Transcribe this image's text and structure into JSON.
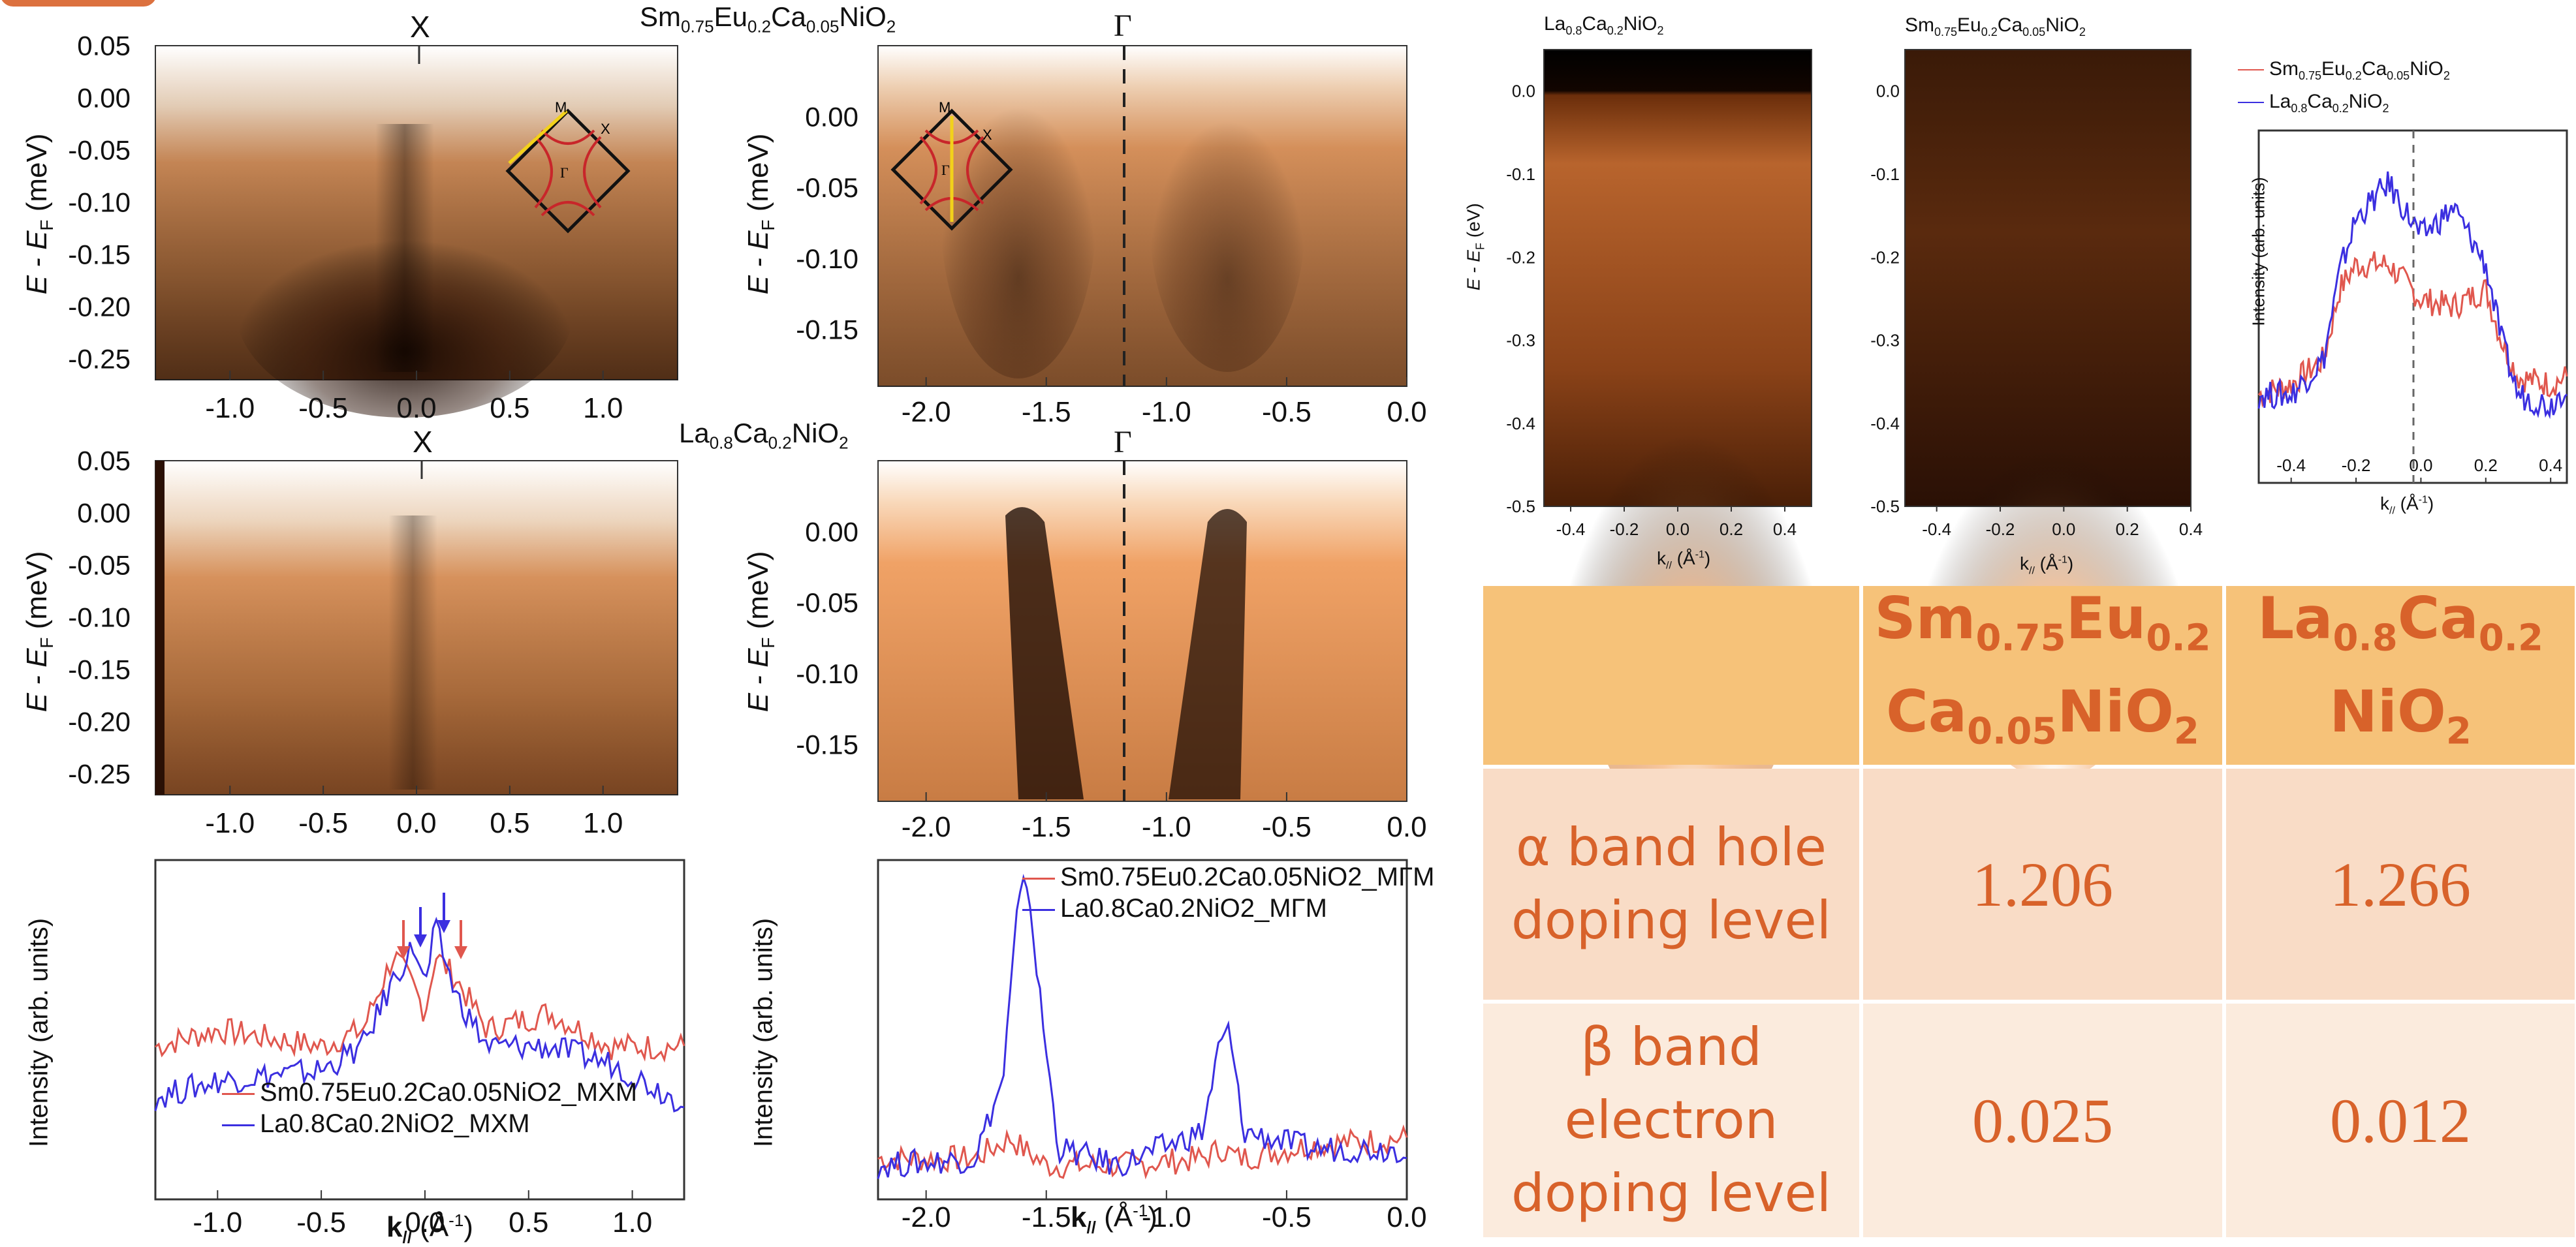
{
  "colors": {
    "orange_text": "#D8622A",
    "table_header": "#F6C279",
    "row_alpha": "#F9DCC6",
    "row_beta": "#FBEBDD",
    "red_curve": "#E0574E",
    "blue_curve": "#3B2FE0"
  },
  "left_panels": {
    "title_sm": {
      "base": "Sm",
      "s1": "0.75",
      "b2": "Eu",
      "s2": "0.2",
      "b3": "Ca",
      "s3": "0.05",
      "b4": "NiO",
      "s4": "2"
    },
    "title_la": {
      "base": "La",
      "s1": "0.8",
      "b2": "Ca",
      "s2": "0.2",
      "b3": "NiO",
      "s3": "2"
    },
    "label_X": "X",
    "label_Gamma": "Γ",
    "ylabel_energy": "E - E",
    "ylabel_energy_sub": "F",
    "ylabel_energy_unit": "(meV)",
    "ylabel_intensity": "Intensity (arb. units)",
    "xlabel_k": "k",
    "xlabel_k_sub": "//",
    "xlabel_k_unit": "(Å",
    "xlabel_k_unit_sup": "-1",
    "xlabel_k_close": ")",
    "bz_labels": {
      "M": "M",
      "X": "X",
      "Gamma": "Γ"
    }
  },
  "chart_data": [
    {
      "type": "heatmap",
      "title": "Sm0.75Eu0.2Ca0.05NiO2",
      "point_label": "X",
      "xlim": [
        -1.4,
        1.4
      ],
      "ylim": [
        -0.27,
        0.05
      ],
      "x_ticks": [
        "-1.0",
        "-0.5",
        "0.0",
        "0.5",
        "1.0"
      ],
      "y_ticks": [
        "0.05",
        "0.00",
        "-0.05",
        "-0.10",
        "-0.15",
        "-0.20",
        "-0.25"
      ]
    },
    {
      "type": "heatmap",
      "point_label": "Γ",
      "xlim": [
        -2.2,
        0.0
      ],
      "ylim": [
        -0.19,
        0.05
      ],
      "x_ticks": [
        "-2.0",
        "-1.5",
        "-1.0",
        "-0.5",
        "0.0"
      ],
      "y_ticks": [
        "0.00",
        "-0.05",
        "-0.10",
        "-0.15"
      ]
    },
    {
      "type": "heatmap",
      "title": "La0.8Ca0.2NiO2",
      "point_label": "X",
      "xlim": [
        -1.4,
        1.4
      ],
      "ylim": [
        -0.27,
        0.05
      ],
      "x_ticks": [
        "-1.0",
        "-0.5",
        "0.0",
        "0.5",
        "1.0"
      ],
      "y_ticks": [
        "0.05",
        "0.00",
        "-0.05",
        "-0.10",
        "-0.15",
        "-0.20",
        "-0.25"
      ]
    },
    {
      "type": "heatmap",
      "point_label": "Γ",
      "xlim": [
        -2.2,
        0.0
      ],
      "ylim": [
        -0.19,
        0.05
      ],
      "x_ticks": [
        "-2.0",
        "-1.5",
        "-1.0",
        "-0.5",
        "0.0"
      ],
      "y_ticks": [
        "0.00",
        "-0.05",
        "-0.10",
        "-0.15"
      ]
    },
    {
      "type": "line",
      "xlim": [
        -1.3,
        1.25
      ],
      "x_ticks": [
        "-1.0",
        "-0.5",
        "0.0",
        "0.5",
        "1.0"
      ],
      "ylabel": "Intensity (arb. units)",
      "series": [
        {
          "name": "Sm0.75Eu0.2Ca0.05NiO2_MXM",
          "color": "#E0574E",
          "x": [
            -1.3,
            -1.0,
            -0.5,
            -0.3,
            -0.15,
            -0.05,
            0.0,
            0.05,
            0.15,
            0.3,
            0.6,
            0.9,
            1.2
          ],
          "y": [
            0.45,
            0.5,
            0.45,
            0.5,
            0.72,
            0.62,
            0.55,
            0.72,
            0.65,
            0.5,
            0.55,
            0.45,
            0.45
          ]
        },
        {
          "name": "La0.8Ca0.2NiO2_MXM",
          "color": "#3B2FE0",
          "x": [
            -1.3,
            -1.0,
            -0.5,
            -0.3,
            -0.15,
            -0.05,
            0.0,
            0.05,
            0.15,
            0.3,
            0.6,
            0.9,
            1.2
          ],
          "y": [
            0.3,
            0.35,
            0.38,
            0.45,
            0.65,
            0.75,
            0.62,
            0.8,
            0.6,
            0.45,
            0.45,
            0.4,
            0.3
          ]
        }
      ],
      "legend": [
        "Sm0.75Eu0.2Ca0.05NiO2_MXM",
        "La0.8Ca0.2NiO2_MXM"
      ]
    },
    {
      "type": "line",
      "xlim": [
        -2.2,
        0.0
      ],
      "x_ticks": [
        "-2.0",
        "-1.5",
        "-1.0",
        "-0.5",
        "0.0"
      ],
      "ylabel": "Intensity (arb. units)",
      "series": [
        {
          "name": "Sm0.75Eu0.2Ca0.05NiO2_MΓM",
          "color": "#E0574E",
          "x": [
            -2.2,
            -1.8,
            -1.65,
            -1.58,
            -1.5,
            -1.2,
            -0.85,
            -0.77,
            -0.7,
            -0.4,
            0.0
          ],
          "y": [
            0.12,
            0.12,
            0.18,
            0.14,
            0.1,
            0.1,
            0.12,
            0.15,
            0.12,
            0.16,
            0.18
          ]
        },
        {
          "name": "La0.8Ca0.2NiO2_MΓM",
          "color": "#3B2FE0",
          "x": [
            -2.2,
            -1.8,
            -1.68,
            -1.62,
            -1.58,
            -1.52,
            -1.45,
            -1.2,
            -0.85,
            -0.78,
            -0.74,
            -0.68,
            -0.4,
            0.0
          ],
          "y": [
            0.1,
            0.12,
            0.35,
            0.85,
            0.95,
            0.55,
            0.15,
            0.1,
            0.2,
            0.45,
            0.5,
            0.2,
            0.15,
            0.15
          ]
        }
      ],
      "legend": [
        "Sm0.75Eu0.2Ca0.05NiO2_MΓM",
        "La0.8Ca0.2NiO2_MΓM"
      ]
    },
    {
      "type": "heatmap",
      "title": "La0.8Ca0.2NiO2",
      "xlim": [
        -0.5,
        0.5
      ],
      "ylim": [
        -0.5,
        0.05
      ],
      "x_ticks": [
        "-0.4",
        "-0.2",
        "0.0",
        "0.2",
        "0.4"
      ],
      "y_ticks": [
        "0.0",
        "-0.1",
        "-0.2",
        "-0.3",
        "-0.4",
        "-0.5"
      ],
      "ylabel": "E - EF (eV)",
      "xlabel": "k// (Å-1)"
    },
    {
      "type": "heatmap",
      "title": "Sm0.75Eu0.2Ca0.05NiO2",
      "xlim": [
        -0.5,
        0.4
      ],
      "ylim": [
        -0.5,
        0.05
      ],
      "x_ticks": [
        "-0.4",
        "-0.2",
        "0.0",
        "0.2",
        "0.4"
      ],
      "y_ticks": [
        "0.0",
        "-0.1",
        "-0.2",
        "-0.3",
        "-0.4",
        "-0.5"
      ],
      "xlabel": "k// (Å-1)"
    },
    {
      "type": "line",
      "xlim": [
        -0.5,
        0.45
      ],
      "x_ticks": [
        "-0.4",
        "-0.2",
        "0.0",
        "0.2",
        "0.4"
      ],
      "ylabel": "Intensity (arb. units)",
      "xlabel": "k// (Å-1)",
      "series": [
        {
          "name": "Sm0.75Eu0.2Ca0.05NiO2",
          "color": "#E0574E",
          "x": [
            -0.5,
            -0.4,
            -0.3,
            -0.25,
            -0.2,
            -0.1,
            0.0,
            0.1,
            0.2,
            0.25,
            0.3,
            0.4,
            0.45
          ],
          "y": [
            0.25,
            0.28,
            0.35,
            0.55,
            0.62,
            0.62,
            0.52,
            0.5,
            0.55,
            0.4,
            0.3,
            0.28,
            0.3
          ]
        },
        {
          "name": "La0.8Ca0.2NiO2",
          "color": "#3B2FE0",
          "x": [
            -0.5,
            -0.4,
            -0.3,
            -0.25,
            -0.2,
            -0.1,
            0.0,
            0.1,
            0.2,
            0.25,
            0.3,
            0.4,
            0.45
          ],
          "y": [
            0.25,
            0.25,
            0.35,
            0.6,
            0.75,
            0.85,
            0.7,
            0.78,
            0.62,
            0.4,
            0.25,
            0.22,
            0.28
          ]
        }
      ],
      "legend": [
        "Sm0.75Eu0.2Ca0.05NiO2",
        "La0.8Ca0.2NiO2"
      ]
    }
  ],
  "right_panels": {
    "title_la": {
      "base": "La",
      "s1": "0.8",
      "b2": "Ca",
      "s2": "0.2",
      "b3": "NiO",
      "s3": "2"
    },
    "title_sm": {
      "base": "Sm",
      "s1": "0.75",
      "b2": "Eu",
      "s2": "0.2",
      "b3": "Ca",
      "s3": "0.05",
      "b4": "NiO",
      "s4": "2"
    },
    "ylabel_energy": "E - E",
    "ylabel_energy_sub": "F",
    "ylabel_energy_unit": "(eV)",
    "ylabel_intensity": "Intensity (arb. units)",
    "xlabel_k": "k",
    "xlabel_k_sub": "//",
    "xlabel_k_unit": "(Å",
    "xlabel_k_unit_sup": "-1",
    "xlabel_k_close": ")"
  },
  "table": {
    "col1": {
      "l1_a": "Sm",
      "l1_s1": "0.75",
      "l1_b": "Eu",
      "l1_s2": "0.2",
      "l2_a": "Ca",
      "l2_s1": "0.05",
      "l2_b": "NiO",
      "l2_s2": "2"
    },
    "col2": {
      "l1_a": "La",
      "l1_s1": "0.8",
      "l1_b": "Ca",
      "l1_s2": "0.2",
      "l2_a": "NiO",
      "l2_s2": "2"
    },
    "row_alpha": {
      "line1": "α band hole",
      "line2": "doping level",
      "v1": "1.206",
      "v2": "1.266"
    },
    "row_beta": {
      "line1": "β band",
      "line2": "electron",
      "line3": "doping level",
      "v1": "0.025",
      "v2": "0.012"
    }
  }
}
